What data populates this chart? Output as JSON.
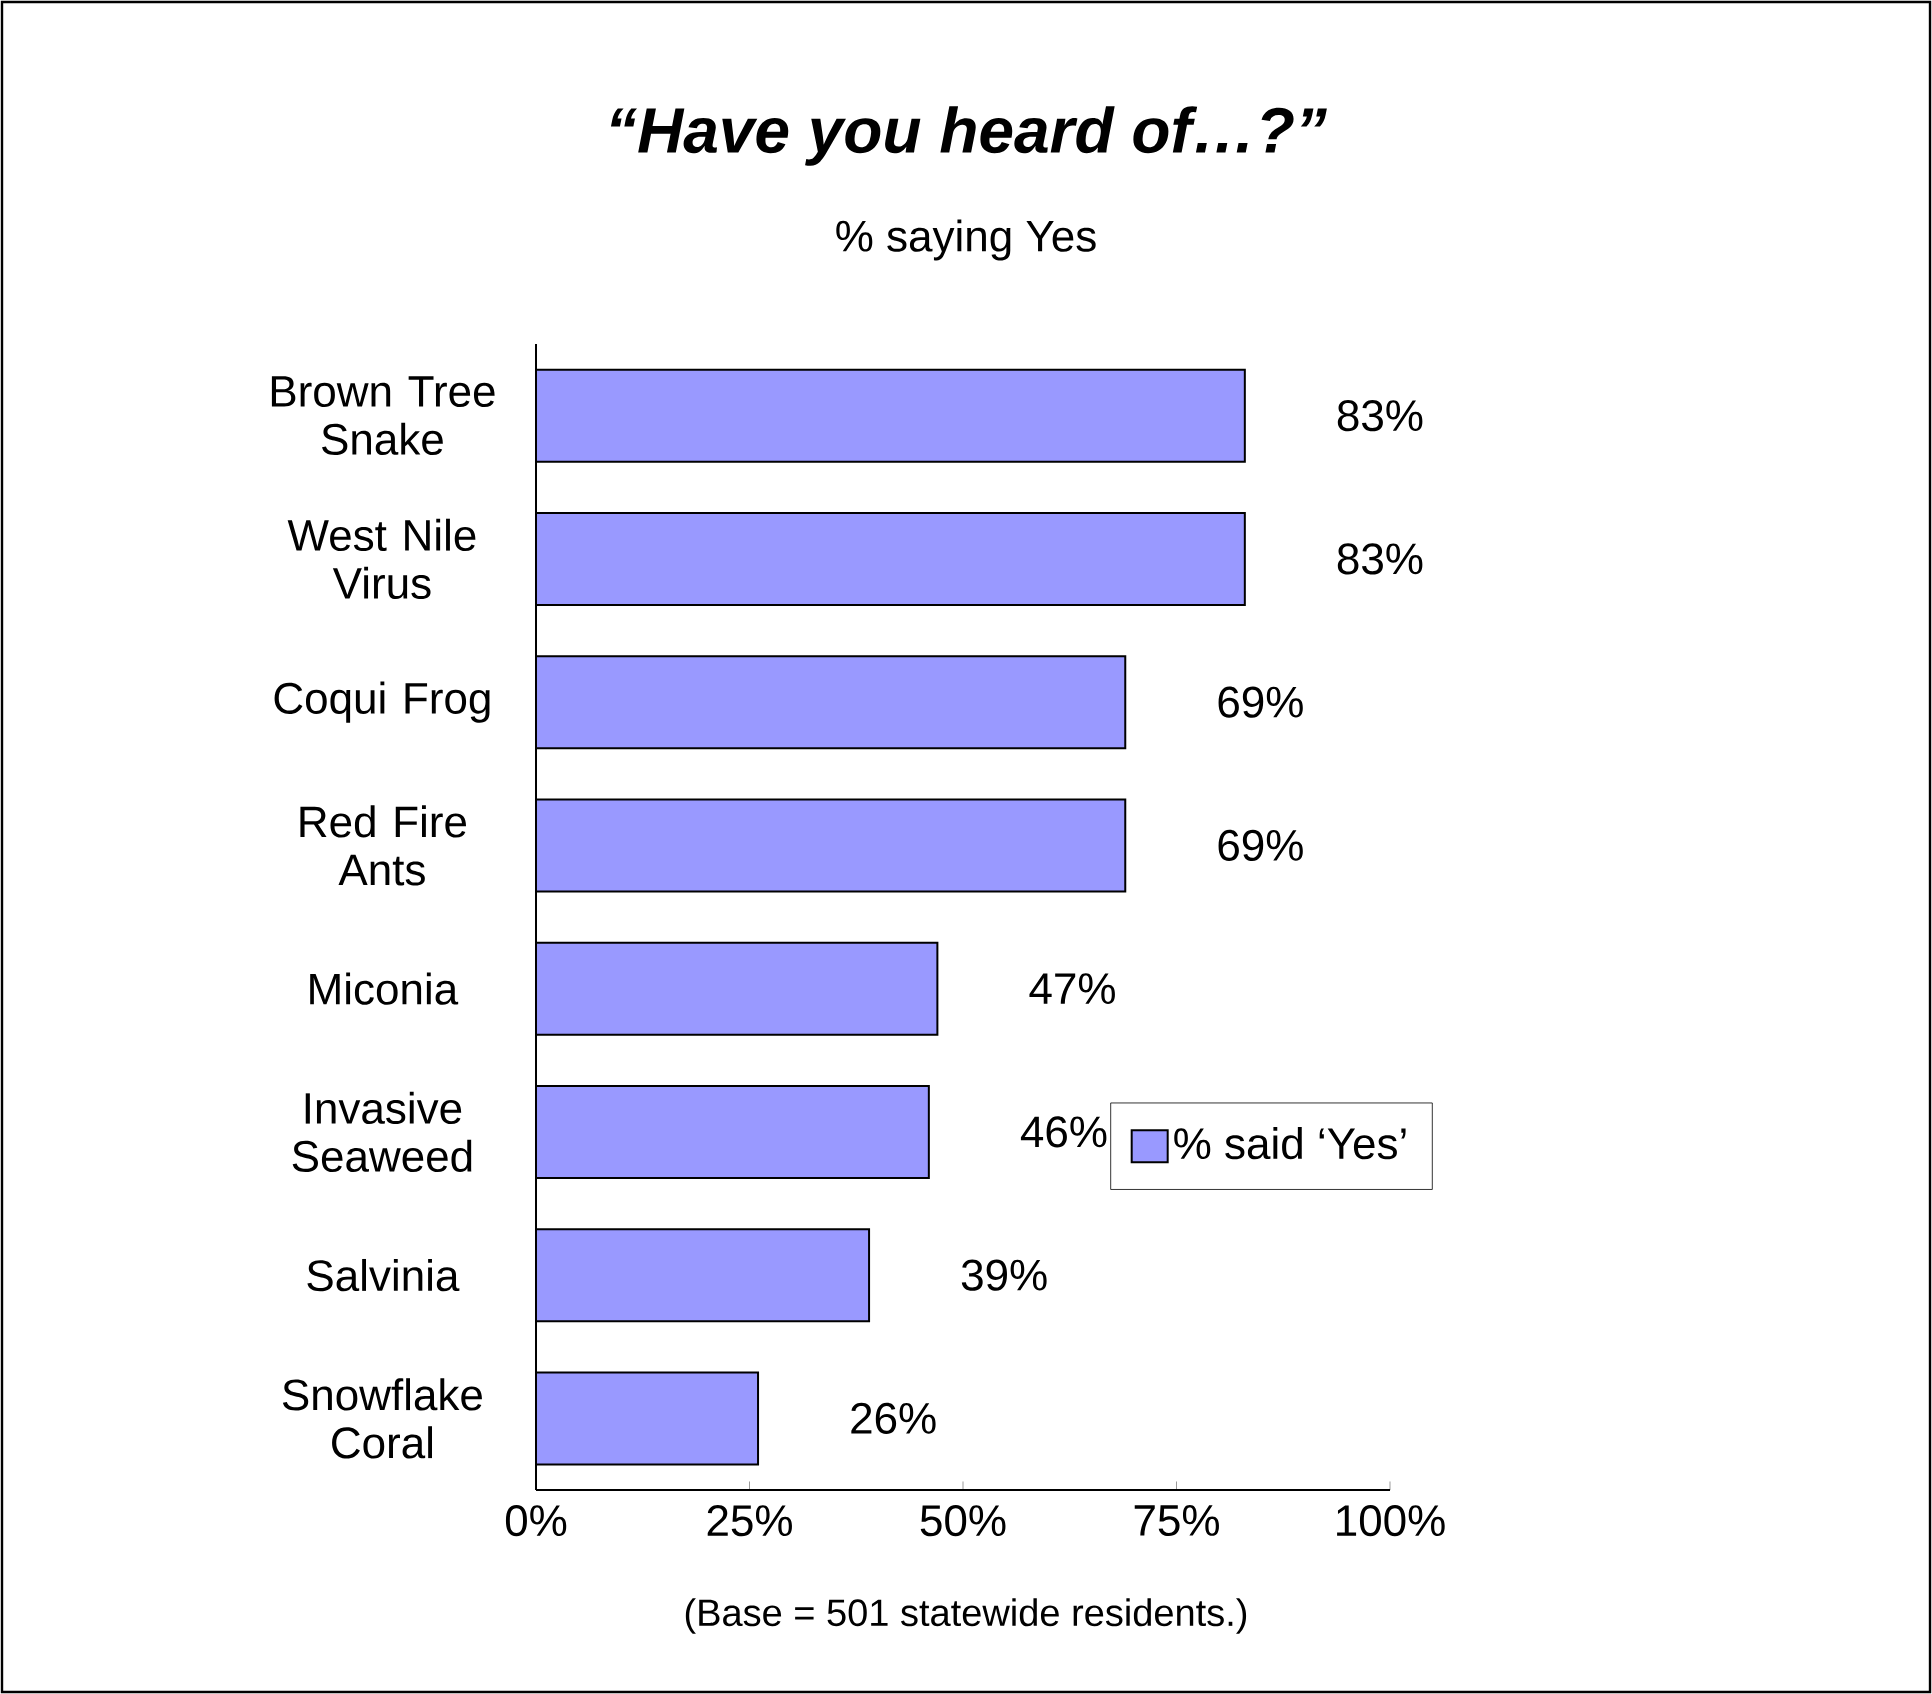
{
  "chart_data": {
    "type": "bar",
    "orientation": "horizontal",
    "title": "“Have you heard of…?”",
    "subtitle": "% saying Yes",
    "categories": [
      "Brown Tree Snake",
      "West Nile Virus",
      "Coqui Frog",
      "Red Fire Ants",
      "Miconia",
      "Invasive Seaweed",
      "Salvinia",
      "Snowflake Coral"
    ],
    "series": [
      {
        "name": "% said ‘Yes’",
        "color": "#9999ff",
        "values": [
          83,
          83,
          69,
          69,
          47,
          46,
          39,
          26
        ],
        "value_labels": [
          "83%",
          "83%",
          "69%",
          "69%",
          "47%",
          "46%",
          "39%",
          "26%"
        ]
      }
    ],
    "xlim": [
      0,
      100
    ],
    "xticks": [
      {
        "value": 0,
        "label": "0%"
      },
      {
        "value": 25,
        "label": "25%"
      },
      {
        "value": 50,
        "label": "50%"
      },
      {
        "value": 75,
        "label": "75%"
      },
      {
        "value": 100,
        "label": "100%"
      }
    ],
    "legend": "right",
    "grid": false,
    "annotations": [
      "(Base = 501 statewide residents.)"
    ]
  }
}
